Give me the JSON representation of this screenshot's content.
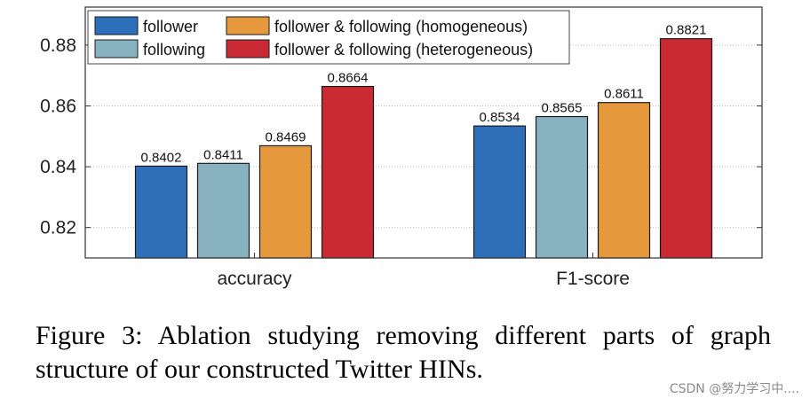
{
  "chart_data": {
    "type": "bar",
    "categories": [
      "accuracy",
      "F1-score"
    ],
    "series": [
      {
        "name": "follower",
        "values": [
          0.8402,
          0.8534
        ],
        "color": "#2e6fb9"
      },
      {
        "name": "following",
        "values": [
          0.8411,
          0.8565
        ],
        "color": "#88b2c0"
      },
      {
        "name": "follower & following (homogeneous)",
        "values": [
          0.8469,
          0.8611
        ],
        "color": "#e6993c"
      },
      {
        "name": "follower & following (heterogeneous)",
        "values": [
          0.8664,
          0.8821
        ],
        "color": "#c92a33"
      }
    ],
    "data_labels": [
      [
        "0.8402",
        "0.8534"
      ],
      [
        "0.8411",
        "0.8565"
      ],
      [
        "0.8469",
        "0.8611"
      ],
      [
        "0.8664",
        "0.8821"
      ]
    ],
    "y_ticks": [
      0.82,
      0.84,
      0.86,
      0.88
    ],
    "y_tick_labels": [
      "0.82",
      "0.84",
      "0.86",
      "0.88"
    ],
    "ylim": [
      0.81,
      0.8925
    ],
    "grid": true,
    "legend_position": "top-left",
    "title": "",
    "xlabel": "",
    "ylabel": ""
  },
  "caption": "Figure 3: Ablation studying removing different parts of graph structure of our constructed Twitter HINs.",
  "watermark": "CSDN @努力学习中...."
}
